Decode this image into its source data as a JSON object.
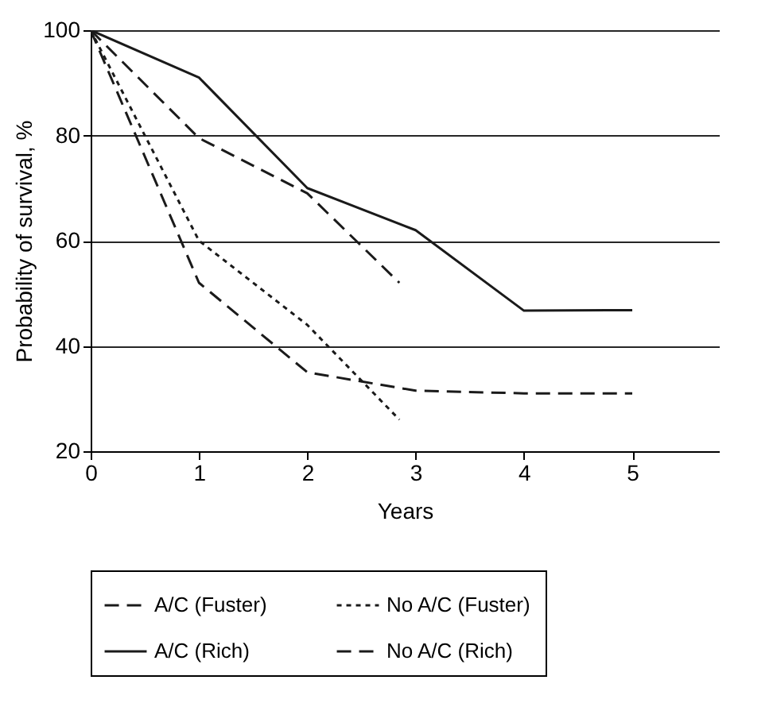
{
  "chart_data": {
    "type": "line",
    "xlabel": "Years",
    "ylabel": "Probability of survival, %",
    "x": [
      0,
      1,
      2,
      3,
      4,
      5
    ],
    "series": [
      {
        "name": "A/C (Fuster)",
        "color": "#1a1a1a",
        "line_style": "dashed",
        "x": [
          0,
          1,
          2,
          2.85
        ],
        "values": [
          100,
          79.5,
          69,
          52
        ]
      },
      {
        "name": "No A/C (Fuster)",
        "color": "#1a1a1a",
        "line_style": "dotted",
        "x": [
          0,
          1,
          2,
          2.85
        ],
        "values": [
          100,
          60,
          44,
          26
        ]
      },
      {
        "name": "A/C (Rich)",
        "color": "#1a1a1a",
        "line_style": "solid",
        "values": [
          100,
          91,
          70,
          62,
          46.7,
          46.8
        ]
      },
      {
        "name": "No A/C (Rich)",
        "color": "#1a1a1a",
        "line_style": "dashed",
        "values": [
          100,
          52,
          35,
          31.5,
          31,
          31
        ]
      }
    ],
    "xlim": [
      0,
      5.8
    ],
    "xticks": [
      0,
      1,
      2,
      3,
      4,
      5
    ],
    "ylim": [
      20,
      100
    ],
    "yticks": [
      20,
      40,
      60,
      80,
      100
    ],
    "grid": "y",
    "legend": "bottom"
  }
}
